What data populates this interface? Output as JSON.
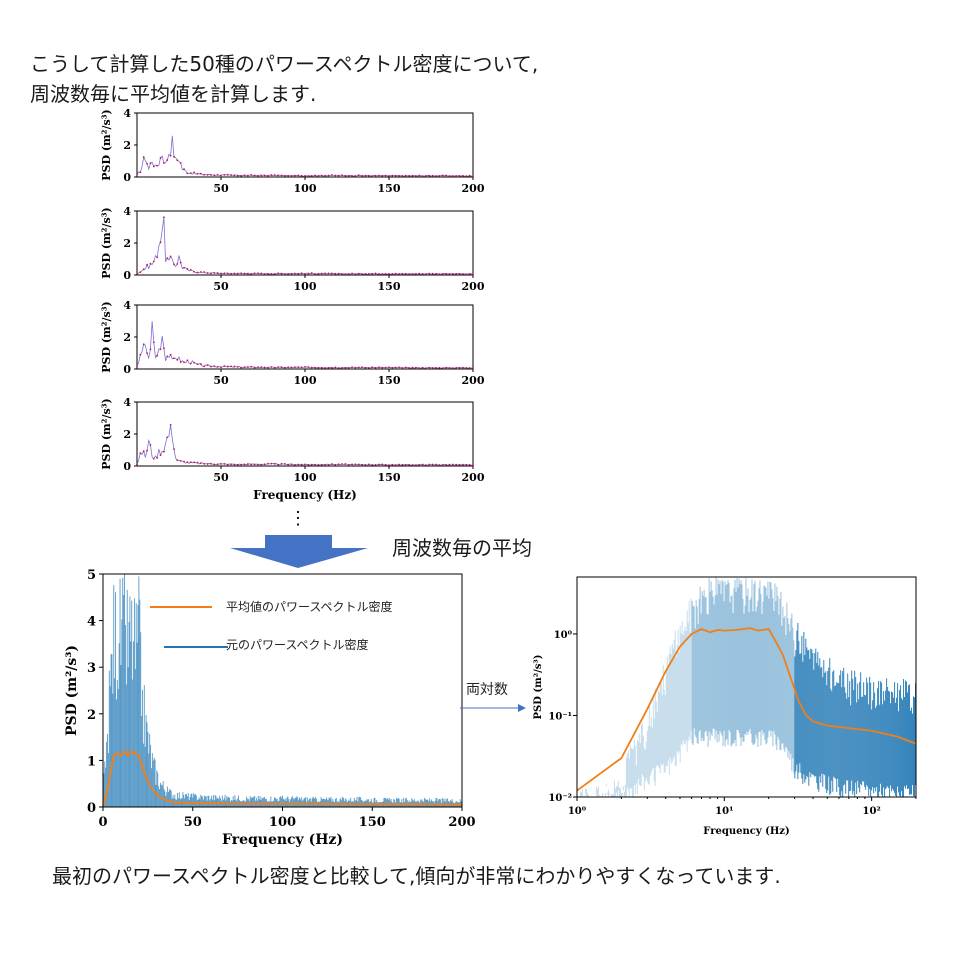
{
  "text": {
    "intro_line1": "こうして計算した50種のパワースペクトル密度について,",
    "intro_line2": "周波数毎に平均値を計算します.",
    "arrow_caption": "周波数毎の平均",
    "log_arrow_label": "両対数",
    "conclusion": "最初のパワースペクトル密度と比較して,傾向が非常にわかりやすくなっています.",
    "continuation": "⋮"
  },
  "colors": {
    "psd_trace": "#7b6fd6",
    "psd_marker": "#c0184f",
    "mean_line": "#f07f1a",
    "raw_psd": "#1f77b4",
    "big_arrow": "#4472c4"
  },
  "chart_data": [
    {
      "type": "line",
      "id": "small-psd-1",
      "ylabel": "PSD (m²/s³)",
      "ylim": [
        0,
        4
      ],
      "yticks": [
        "0",
        "2",
        "4"
      ],
      "xlim": [
        0,
        200
      ],
      "xticks": [
        "50",
        "100",
        "150",
        "200"
      ],
      "x": [
        0,
        2,
        5,
        7,
        9,
        11,
        13,
        15,
        17,
        19,
        21,
        23,
        25,
        27,
        30,
        35,
        40,
        50,
        60,
        80,
        100,
        120,
        140,
        160,
        180,
        200
      ],
      "values": [
        0.1,
        0.4,
        1.3,
        0.5,
        1.1,
        0.6,
        0.9,
        1.5,
        0.8,
        1.6,
        2.1,
        1.0,
        1.2,
        0.5,
        0.3,
        0.2,
        0.15,
        0.12,
        0.1,
        0.1,
        0.08,
        0.1,
        0.08,
        0.07,
        0.08,
        0.06
      ]
    },
    {
      "type": "line",
      "id": "small-psd-2",
      "ylabel": "PSD (m²/s³)",
      "ylim": [
        0,
        4
      ],
      "yticks": [
        "0",
        "2",
        "4"
      ],
      "xlim": [
        0,
        200
      ],
      "xticks": [
        "50",
        "100",
        "150",
        "200"
      ],
      "x": [
        0,
        3,
        6,
        9,
        11,
        13,
        15,
        16,
        17,
        19,
        21,
        23,
        25,
        27,
        30,
        35,
        40,
        50,
        60,
        80,
        100,
        120,
        140,
        160,
        180,
        200
      ],
      "values": [
        0.05,
        0.3,
        0.5,
        0.7,
        1.0,
        2.0,
        3.1,
        2.8,
        1.1,
        0.8,
        1.0,
        0.6,
        1.1,
        0.5,
        0.3,
        0.2,
        0.15,
        0.1,
        0.1,
        0.08,
        0.1,
        0.07,
        0.08,
        0.07,
        0.08,
        0.06
      ]
    },
    {
      "type": "line",
      "id": "small-psd-3",
      "ylabel": "PSD (m²/s³)",
      "ylim": [
        0,
        4
      ],
      "yticks": [
        "0",
        "2",
        "4"
      ],
      "xlim": [
        0,
        200
      ],
      "xticks": [
        "50",
        "100",
        "150",
        "200"
      ],
      "x": [
        0,
        3,
        5,
        7,
        9,
        11,
        13,
        15,
        17,
        19,
        21,
        23,
        25,
        28,
        31,
        35,
        40,
        50,
        60,
        80,
        100,
        120,
        140,
        160,
        180,
        200
      ],
      "values": [
        0.2,
        1.0,
        1.6,
        0.6,
        2.6,
        0.7,
        1.2,
        2.2,
        0.7,
        0.9,
        0.5,
        0.8,
        0.6,
        0.4,
        0.5,
        0.3,
        0.2,
        0.15,
        0.12,
        0.1,
        0.1,
        0.09,
        0.1,
        0.08,
        0.07,
        0.08
      ]
    },
    {
      "type": "line",
      "id": "small-psd-4",
      "ylabel": "PSD (m²/s³)",
      "ylim": [
        0,
        4
      ],
      "yticks": [
        "0",
        "2",
        "4"
      ],
      "xlim": [
        0,
        200
      ],
      "xticks": [
        "50",
        "100",
        "150",
        "200"
      ],
      "xlabel": "Frequency (Hz)",
      "x": [
        0,
        3,
        5,
        7,
        9,
        11,
        13,
        15,
        17,
        19,
        21,
        23,
        25,
        28,
        31,
        35,
        40,
        50,
        60,
        80,
        100,
        120,
        140,
        160,
        180,
        200
      ],
      "values": [
        0.1,
        0.9,
        0.6,
        1.5,
        0.7,
        0.5,
        0.9,
        1.0,
        1.4,
        2.0,
        2.2,
        0.5,
        0.3,
        0.25,
        0.2,
        0.18,
        0.15,
        0.12,
        0.1,
        0.12,
        0.08,
        0.1,
        0.08,
        0.07,
        0.08,
        0.06
      ]
    },
    {
      "type": "line",
      "id": "mean-linear",
      "xlabel": "Frequency (Hz)",
      "ylabel": "PSD (m²/s³)",
      "xlim": [
        0,
        200
      ],
      "ylim": [
        0,
        5
      ],
      "xticks": [
        "0",
        "50",
        "100",
        "150",
        "200"
      ],
      "yticks": [
        "0",
        "1",
        "2",
        "3",
        "4",
        "5"
      ],
      "legend": [
        "平均値のパワースペクトル密度",
        "元のパワースペクトル密度"
      ],
      "legend_position": "top-right",
      "series": [
        {
          "name": "平均値のパワースペクトル密度",
          "x": [
            0,
            2,
            4,
            6,
            8,
            10,
            12,
            14,
            16,
            18,
            20,
            22,
            25,
            28,
            32,
            36,
            40,
            50,
            60,
            80,
            100,
            120,
            140,
            160,
            180,
            200
          ],
          "values": [
            0.0,
            0.3,
            0.7,
            1.1,
            1.15,
            1.1,
            1.2,
            1.1,
            1.2,
            1.15,
            1.1,
            0.85,
            0.55,
            0.35,
            0.2,
            0.13,
            0.1,
            0.08,
            0.08,
            0.07,
            0.07,
            0.07,
            0.06,
            0.06,
            0.06,
            0.05
          ]
        },
        {
          "name": "元のパワースペクトル密度",
          "envelope_x": [
            0,
            2,
            4,
            6,
            8,
            10,
            12,
            14,
            16,
            18,
            20,
            22,
            25,
            28,
            32,
            36,
            40,
            50,
            60,
            80,
            100,
            120,
            140,
            160,
            180,
            200
          ],
          "envelope_max": [
            0.5,
            1.5,
            3.5,
            5.0,
            5.0,
            5.0,
            5.0,
            4.8,
            5.0,
            4.5,
            5.0,
            3.0,
            2.0,
            1.2,
            0.7,
            0.45,
            0.35,
            0.3,
            0.28,
            0.25,
            0.25,
            0.22,
            0.22,
            0.2,
            0.2,
            0.18
          ]
        }
      ]
    },
    {
      "type": "line",
      "id": "mean-loglog",
      "xlabel": "Frequency (Hz)",
      "ylabel": "PSD (m²/s³)",
      "xscale": "log",
      "yscale": "log",
      "xlim": [
        1,
        200
      ],
      "ylim": [
        0.01,
        5
      ],
      "xticks": [
        "10⁰",
        "10¹",
        "10²"
      ],
      "yticks": [
        "10⁻²",
        "10⁻¹",
        "10⁰"
      ],
      "series": [
        {
          "name": "平均値のパワースペクトル密度",
          "x": [
            1,
            2,
            3,
            4,
            5,
            6,
            7,
            8,
            9,
            10,
            12,
            15,
            17,
            20,
            22,
            25,
            28,
            32,
            36,
            40,
            50,
            70,
            100,
            150,
            200
          ],
          "values": [
            0.012,
            0.03,
            0.12,
            0.35,
            0.7,
            1.0,
            1.15,
            1.05,
            1.12,
            1.1,
            1.12,
            1.18,
            1.1,
            1.15,
            0.85,
            0.55,
            0.3,
            0.15,
            0.1,
            0.085,
            0.075,
            0.07,
            0.065,
            0.055,
            0.045
          ]
        },
        {
          "name": "元のパワースペクトル密度",
          "envelope_x": [
            1,
            2,
            3,
            4,
            5,
            6,
            8,
            10,
            15,
            20,
            25,
            30,
            40,
            60,
            100,
            150,
            200
          ],
          "envelope_min": [
            0.01,
            0.01,
            0.015,
            0.02,
            0.03,
            0.05,
            0.05,
            0.05,
            0.05,
            0.05,
            0.04,
            0.02,
            0.015,
            0.012,
            0.011,
            0.01,
            0.01
          ],
          "envelope_max": [
            0.01,
            0.02,
            0.1,
            0.5,
            1.5,
            3.0,
            5.0,
            5.0,
            5.0,
            5.0,
            3.0,
            1.5,
            0.7,
            0.4,
            0.3,
            0.3,
            0.25
          ]
        }
      ]
    }
  ]
}
